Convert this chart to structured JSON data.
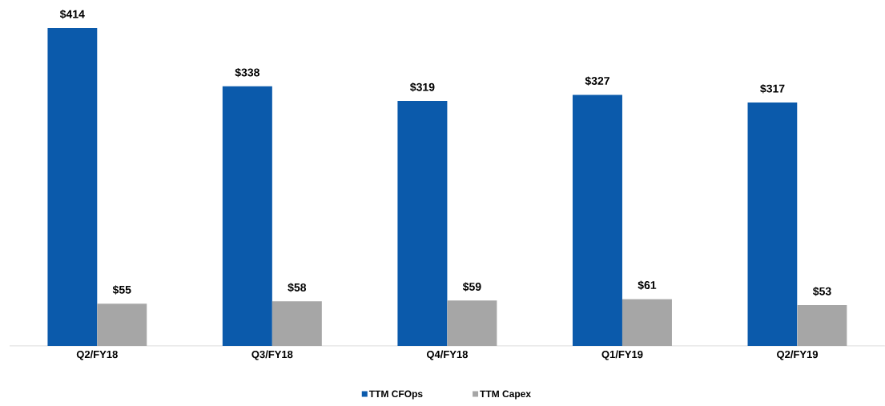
{
  "chart_data": {
    "type": "bar",
    "categories": [
      "Q2/FY18",
      "Q3/FY18",
      "Q4/FY18",
      "Q1/FY19",
      "Q2/FY19"
    ],
    "series": [
      {
        "name": "TTM CFOps",
        "color": "#0b5aab",
        "values": [
          414,
          338,
          319,
          327,
          317
        ],
        "value_labels": [
          "$414",
          "$338",
          "$319",
          "$327",
          "$317"
        ]
      },
      {
        "name": "TTM Capex",
        "color": "#a6a6a6",
        "values": [
          55,
          58,
          59,
          61,
          53
        ],
        "value_labels": [
          "$55",
          "$58",
          "$59",
          "$61",
          "$53"
        ]
      }
    ],
    "legend": "bottom"
  }
}
